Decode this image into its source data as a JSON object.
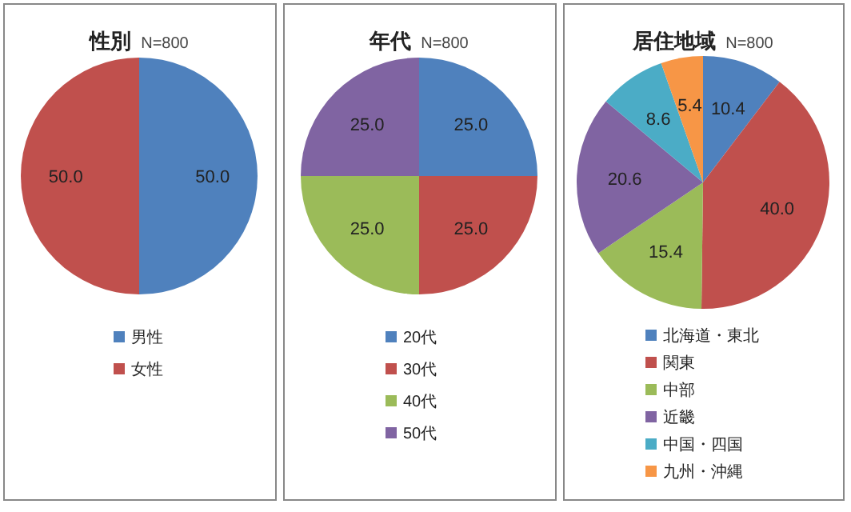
{
  "chart_data": [
    {
      "type": "pie",
      "title": "性別",
      "subtitle": "N=800",
      "categories": [
        "男性",
        "女性"
      ],
      "values": [
        50.0,
        50.0
      ],
      "value_labels": [
        "50.0",
        "50.0"
      ],
      "colors": [
        "#4f81bd",
        "#c0504d"
      ],
      "legend": "bottom"
    },
    {
      "type": "pie",
      "title": "年代",
      "subtitle": "N=800",
      "categories": [
        "20代",
        "30代",
        "40代",
        "50代"
      ],
      "values": [
        25.0,
        25.0,
        25.0,
        25.0
      ],
      "value_labels": [
        "25.0",
        "25.0",
        "25.0",
        "25.0"
      ],
      "colors": [
        "#4f81bd",
        "#c0504d",
        "#9bbb59",
        "#8064a2"
      ],
      "legend": "bottom"
    },
    {
      "type": "pie",
      "title": "居住地域",
      "subtitle": "N=800",
      "categories": [
        "北海道・東北",
        "関東",
        "中部",
        "近畿",
        "中国・四国",
        "九州・沖縄"
      ],
      "values": [
        10.4,
        40.0,
        15.4,
        20.6,
        8.6,
        5.4
      ],
      "value_labels": [
        "10.4",
        "40.0",
        "15.4",
        "20.6",
        "8.6",
        "5.4"
      ],
      "colors": [
        "#4f81bd",
        "#c0504d",
        "#9bbb59",
        "#8064a2",
        "#4bacc6",
        "#f79646"
      ],
      "legend": "bottom"
    }
  ]
}
